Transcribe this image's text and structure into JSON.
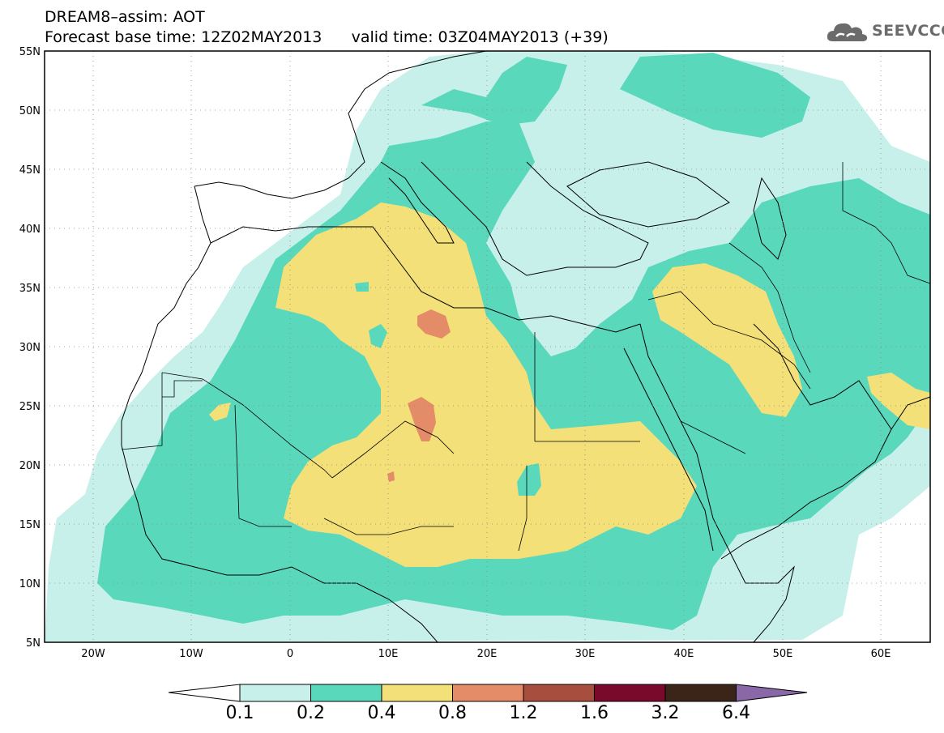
{
  "title": {
    "line1": "DREAM8–assim: AOT",
    "line2": "Forecast base time: 12Z02MAY2013      valid time: 03Z04MAY2013 (+39)"
  },
  "logo": {
    "text": "SEEVCCC",
    "icon": "cloud-icon"
  },
  "map": {
    "lon_range": [
      -25,
      65
    ],
    "lat_range": [
      5,
      55
    ],
    "lon_ticks": [
      "20W",
      "10W",
      "0",
      "10E",
      "20E",
      "30E",
      "40E",
      "50E",
      "60E"
    ],
    "lat_ticks": [
      "5N",
      "10N",
      "15N",
      "20N",
      "25N",
      "30N",
      "35N",
      "40N",
      "45N",
      "50N",
      "55N"
    ],
    "grid": "dotted"
  },
  "colorbar": {
    "levels": [
      "0.1",
      "0.2",
      "0.4",
      "0.8",
      "1.2",
      "1.6",
      "3.2",
      "6.4"
    ],
    "colors": [
      "#c7f0ea",
      "#5ad8bc",
      "#f4e079",
      "#e48b68",
      "#a84e3e",
      "#7a0a2b",
      "#3b2418",
      "#8a68a8"
    ]
  }
}
